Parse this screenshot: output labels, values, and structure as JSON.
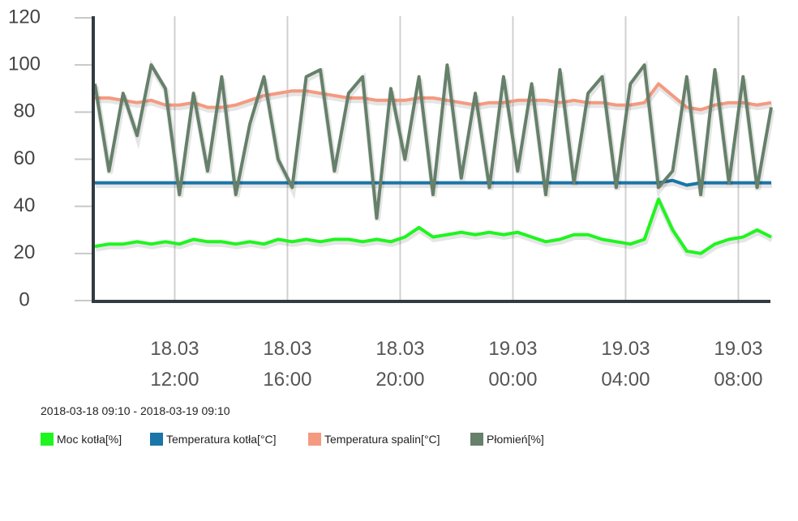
{
  "chart_data": {
    "type": "line",
    "subtitle": "2018-03-18 09:10 - 2018-03-19 09:10",
    "x": [
      "2018-03-18 09:10",
      "2018-03-18 09:40",
      "2018-03-18 10:10",
      "2018-03-18 10:40",
      "2018-03-18 11:10",
      "2018-03-18 11:40",
      "2018-03-18 12:10",
      "2018-03-18 12:40",
      "2018-03-18 13:10",
      "2018-03-18 13:40",
      "2018-03-18 14:10",
      "2018-03-18 14:40",
      "2018-03-18 15:10",
      "2018-03-18 15:40",
      "2018-03-18 16:10",
      "2018-03-18 16:40",
      "2018-03-18 17:10",
      "2018-03-18 17:40",
      "2018-03-18 18:10",
      "2018-03-18 18:40",
      "2018-03-18 19:10",
      "2018-03-18 19:40",
      "2018-03-18 20:10",
      "2018-03-18 20:40",
      "2018-03-18 21:10",
      "2018-03-18 21:40",
      "2018-03-18 22:10",
      "2018-03-18 22:40",
      "2018-03-18 23:10",
      "2018-03-18 23:40",
      "2018-03-19 00:10",
      "2018-03-19 00:40",
      "2018-03-19 01:10",
      "2018-03-19 01:40",
      "2018-03-19 02:10",
      "2018-03-19 02:40",
      "2018-03-19 03:10",
      "2018-03-19 03:40",
      "2018-03-19 04:10",
      "2018-03-19 04:40",
      "2018-03-19 05:10",
      "2018-03-19 05:40",
      "2018-03-19 06:10",
      "2018-03-19 06:40",
      "2018-03-19 07:10",
      "2018-03-19 07:40",
      "2018-03-19 08:10",
      "2018-03-19 08:40",
      "2018-03-19 09:10"
    ],
    "series": [
      {
        "name": "Moc kotła[%]",
        "color": "#1ff51f",
        "values": [
          23,
          24,
          24,
          25,
          24,
          25,
          24,
          26,
          25,
          25,
          24,
          25,
          24,
          26,
          25,
          26,
          25,
          26,
          26,
          25,
          26,
          25,
          27,
          31,
          27,
          28,
          29,
          28,
          29,
          28,
          29,
          27,
          25,
          26,
          28,
          28,
          26,
          25,
          24,
          26,
          43,
          30,
          21,
          20,
          24,
          26,
          27,
          30,
          27
        ]
      },
      {
        "name": "Temperatura kotła[°C]",
        "color": "#1a75a8",
        "values": [
          50,
          50,
          50,
          50,
          50,
          50,
          50,
          50,
          50,
          50,
          50,
          50,
          50,
          50,
          50,
          50,
          50,
          50,
          50,
          50,
          50,
          50,
          50,
          50,
          50,
          50,
          50,
          50,
          50,
          50,
          50,
          50,
          50,
          50,
          50,
          50,
          50,
          50,
          50,
          50,
          50,
          51,
          49,
          50,
          50,
          50,
          50,
          50,
          50
        ]
      },
      {
        "name": "Temperatura spalin[°C]",
        "color": "#f49a80",
        "values": [
          86,
          86,
          85,
          84,
          85,
          83,
          83,
          84,
          82,
          82,
          83,
          85,
          87,
          88,
          89,
          89,
          88,
          87,
          86,
          86,
          85,
          85,
          85,
          86,
          86,
          85,
          84,
          83,
          84,
          84,
          85,
          85,
          85,
          84,
          85,
          84,
          84,
          83,
          83,
          84,
          92,
          87,
          82,
          81,
          83,
          84,
          84,
          83,
          84
        ]
      },
      {
        "name": "Płomień[%]",
        "color": "#66806a",
        "values": [
          92,
          55,
          88,
          70,
          100,
          90,
          45,
          88,
          55,
          95,
          45,
          75,
          95,
          60,
          48,
          95,
          98,
          55,
          88,
          95,
          35,
          90,
          60,
          95,
          45,
          100,
          52,
          88,
          48,
          95,
          55,
          92,
          45,
          98,
          50,
          88,
          95,
          48,
          92,
          100,
          48,
          55,
          95,
          45,
          98,
          50,
          95,
          48,
          82
        ]
      }
    ],
    "xlim": [
      "2018-03-18 09:10",
      "2018-03-19 09:10"
    ],
    "xticks": [
      {
        "value": "2018-03-18 12:00",
        "label": "18.03 12:00"
      },
      {
        "value": "2018-03-18 16:00",
        "label": "18.03 16:00"
      },
      {
        "value": "2018-03-18 20:00",
        "label": "18.03 20:00"
      },
      {
        "value": "2018-03-19 00:00",
        "label": "19.03 00:00"
      },
      {
        "value": "2018-03-19 04:00",
        "label": "19.03 04:00"
      },
      {
        "value": "2018-03-19 08:00",
        "label": "19.03 08:00"
      }
    ],
    "ylim": [
      0,
      120
    ],
    "yticks": [
      0,
      20,
      40,
      60,
      80,
      100,
      120
    ],
    "grid": true
  }
}
